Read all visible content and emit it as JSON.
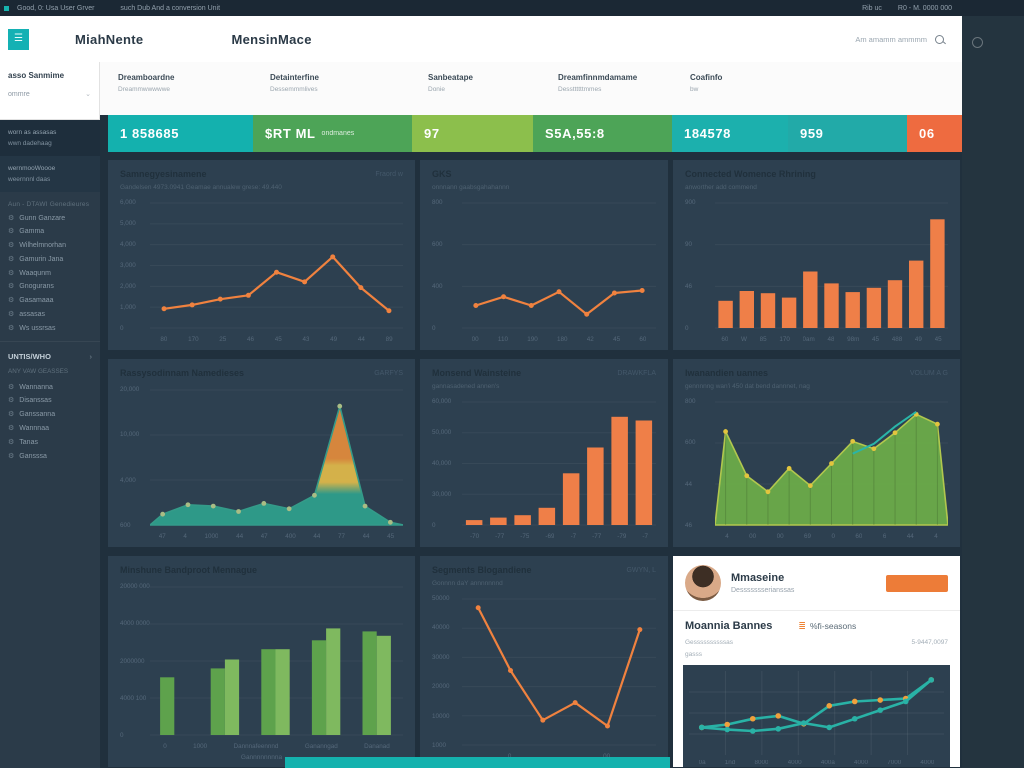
{
  "topbar": {
    "left1": "Good, 0: Usa User Grver",
    "left2": "such Dub And a conversion Unit",
    "right1": "Rib uc",
    "right2": "R0 - M. 0000 000"
  },
  "header": {
    "brand": "MiahNente",
    "title": "MensinMace",
    "search_text": "Am amamm ammmm"
  },
  "sidebar": {
    "account_title": "asso Sanmime",
    "account_sub": "ommre",
    "chevron": "⌄",
    "note1": [
      "worn as assasas",
      "wwn dadehaag"
    ],
    "note2": [
      "wernmooWoooe",
      "weernnnl daas"
    ],
    "section1": "Aun - DTAWI Genedieures",
    "menu1": [
      "Gunn Ganzare",
      "Gamma",
      "Wilhelmnorhan",
      "Gamurin Jana",
      "Waaqunm",
      "Gnogurans",
      "Gasamaaa",
      "assasas",
      "Ws ussrsas"
    ],
    "section2": "UNTIS/WHO",
    "section2_chevron": "›",
    "section2_sub": "ANY VAW GEASSES",
    "menu2": [
      "Wannanna",
      "Disanssas",
      "Ganssanna",
      "Wannnaa",
      "Tanas",
      "Gansssa"
    ]
  },
  "kpis": {
    "labels": [
      {
        "title": "Dreamboardne",
        "sub": "Dreammwwwwwe"
      },
      {
        "title": "Detainterfine",
        "sub": "Dessemmmlives"
      },
      {
        "title": "Sanbeatape",
        "sub": "Donie"
      },
      {
        "title": "Dreamfinnmdamame",
        "sub": "Dessttttttmmes"
      },
      {
        "title": "Coafinfo",
        "sub": "bw"
      }
    ],
    "tiles": [
      {
        "value": "1 858685",
        "color": "#14b1ae"
      },
      {
        "value": "$RT ML",
        "sub": "ondmanes",
        "color": "#4da457"
      },
      {
        "value": "97",
        "color": "#8cbf4c"
      },
      {
        "value": "S5A,55:8",
        "color": "#4da457"
      },
      {
        "value": "184578",
        "color": "#1cb0ad"
      },
      {
        "value": "959",
        "color": "#22aaa8"
      },
      {
        "value": "06",
        "color": "#ee6b40"
      }
    ]
  },
  "profile": {
    "name": "Mmaseine",
    "subtitle": "Dessssssserianssas",
    "section_title": "Moannia Bannes",
    "badge_text": "%fi-seasons",
    "line1": "Gessssssssssas",
    "right_value": "5-9447,0097",
    "line2": "gasss"
  },
  "chart_data": [
    {
      "type": "line",
      "title": "Samnegyesinamene",
      "subtitle": "Gandelsen 4973.0941 Geamae annualew grese: 49.440",
      "corner": "Fraord w",
      "color": "#f0823f",
      "max": 65,
      "values": [
        10,
        12,
        15,
        17,
        29,
        24,
        37,
        21,
        9
      ],
      "yticks": [
        "6,000",
        "5,000",
        "4,000",
        "3,000",
        "2,000",
        "1,000",
        "0"
      ],
      "xticks": [
        "80",
        "170",
        "25",
        "46",
        "45",
        "43",
        "49",
        "44",
        "89"
      ],
      "grid": false,
      "legend": "none"
    },
    {
      "type": "line",
      "title": "GKS",
      "subtitle": "onnnann gaabsgahahannn",
      "color": "#f0823f",
      "max": 100,
      "values": [
        18,
        25,
        18,
        29,
        11,
        28,
        30
      ],
      "yticks": [
        "800",
        "600",
        "400",
        "0"
      ],
      "xticks": [
        "00",
        "110",
        "190",
        "180",
        "42",
        "45",
        "60"
      ]
    },
    {
      "type": "bar",
      "title": "Connected Womence Rhrining",
      "subtitle": "anworther add commend",
      "color": "#ef7f48",
      "max": 115,
      "values": [
        25,
        34,
        32,
        28,
        52,
        41,
        33,
        37,
        44,
        62,
        100
      ],
      "yticks": [
        "900",
        "90",
        "46",
        "0"
      ],
      "xticks": [
        "60",
        "W",
        "85",
        "170",
        "0am",
        "48",
        "98m",
        "45",
        "488",
        "49",
        "45"
      ]
    },
    {
      "type": "area",
      "title": "Rassysodinnam Namedieses",
      "corner": "GARFYS",
      "gradient": [
        "#e08a3c",
        "#ddb84a",
        "#2f9e8c"
      ],
      "stroke": "#35a08d",
      "dots": "#a9bd85",
      "max": 100,
      "values": [
        8,
        15,
        14,
        10,
        16,
        12,
        22,
        88,
        14,
        2
      ],
      "yticks": [
        "20,000",
        "10,000",
        "4,000",
        "600"
      ],
      "xticks": [
        "47",
        "4",
        "1000",
        "44",
        "47",
        "400",
        "44",
        "77",
        "44",
        "45"
      ]
    },
    {
      "type": "bar",
      "title": "Monsend Wainsteine",
      "subtitle": "gannasadened annen's",
      "corner": "DRAWKFLA",
      "color": "#ef7f48",
      "max": 100,
      "values": [
        4,
        6,
        8,
        14,
        42,
        63,
        88,
        85
      ],
      "yticks": [
        "60,000",
        "50,000",
        "40,000",
        "30,000",
        "0"
      ],
      "xticks": [
        "-70",
        "-77",
        "-75",
        "-69",
        "-7",
        "-77",
        "-79",
        "-7"
      ]
    },
    {
      "type": "area",
      "title": "Iwanandien uannes",
      "subtitle": "gennnnng wan'i 450 dat bend dannnet, nag",
      "corner": "VOLUM A G",
      "fill": "#6cab49",
      "stroke": "#b9cf4e",
      "dots": "#e2c53e",
      "vlines": true,
      "max": 100,
      "values": [
        76,
        40,
        27,
        46,
        32,
        50,
        68,
        62,
        75,
        90,
        82
      ],
      "overlay": {
        "color": "#2ab5a8",
        "values": [
          null,
          null,
          null,
          null,
          null,
          null,
          58,
          66,
          80,
          92,
          null
        ]
      },
      "yticks": [
        "800",
        "600",
        "44",
        "46"
      ],
      "xticks": [
        "4",
        "00",
        "00",
        "69",
        "0",
        "60",
        "6",
        "44",
        "4"
      ]
    },
    {
      "type": "groupbar",
      "title": "Minshune Bandproot Mennague",
      "colors": [
        "#5ea24c",
        "#7fb95f"
      ],
      "max": 100,
      "groups": [
        [
          39,
          null
        ],
        [
          45,
          51
        ],
        [
          58,
          58
        ],
        [
          64,
          72
        ],
        [
          70,
          67
        ]
      ],
      "yticks": [
        "20000 0000",
        "4000 0000",
        "2000000",
        "4000 100",
        "0"
      ],
      "xticks": [
        "0",
        "1000",
        "Dannnafeennnd",
        "Gananngad",
        "Dananad"
      ],
      "caption": "Gannnnnnnna"
    },
    {
      "type": "line",
      "title": "Segments Blogandiene",
      "subtitle": "Gonnnn daY annnnnnnd",
      "corner": "GWYN, L",
      "color": "#f0823f",
      "max": 100,
      "values": [
        94,
        51,
        17,
        29,
        13,
        79
      ],
      "yticks": [
        "50000",
        "40000",
        "30000",
        "20000",
        "10000",
        "1000"
      ],
      "xticks": [
        "0",
        "00"
      ]
    },
    {
      "type": "lines",
      "title": "",
      "grid": true,
      "series": [
        {
          "name": "series-a",
          "color": "#29b2a6",
          "dots": "#f0a03c",
          "values": [
            30,
            34,
            42,
            46,
            35,
            60,
            66,
            68,
            70,
            96
          ]
        },
        {
          "name": "series-b",
          "color": "#29b2a6",
          "dots": "#29b2a6",
          "values": [
            30,
            27,
            25,
            28,
            36,
            30,
            42,
            54,
            66,
            96
          ]
        }
      ],
      "xticks": [
        "0a",
        "1nd",
        "8000",
        "4000",
        "400a",
        "4000",
        "7000",
        "4000"
      ]
    }
  ]
}
